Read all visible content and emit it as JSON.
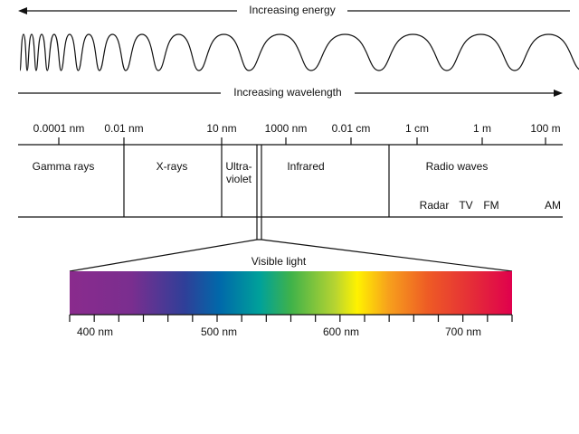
{
  "energy_arrow": "Increasing energy",
  "wavelength_arrow": "Increasing wavelength",
  "scale": [
    "0.0001 nm",
    "0.01 nm",
    "10 nm",
    "1000 nm",
    "0.01 cm",
    "1 cm",
    "1 m",
    "100 m"
  ],
  "regions": [
    {
      "lines": [
        "Gamma rays"
      ]
    },
    {
      "lines": [
        "X-rays"
      ]
    },
    {
      "lines": [
        "Ultra-",
        "violet"
      ]
    },
    {
      "lines": [
        "Infrared"
      ]
    },
    {
      "lines": [
        "Radio waves"
      ]
    }
  ],
  "radio_bands": [
    "Radar",
    "TV",
    "FM",
    "AM"
  ],
  "visible": {
    "title": "Visible light",
    "ticks": [
      "400 nm",
      "500 nm",
      "600 nm",
      "700 nm"
    ]
  }
}
